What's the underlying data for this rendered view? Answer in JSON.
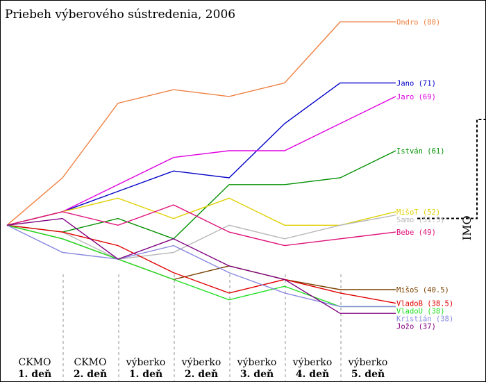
{
  "chart_data": {
    "type": "line",
    "title": "Priebeh výberového sústredenia, 2006",
    "xlabel": "",
    "ylabel": "",
    "stages": [
      {
        "line1": "CKMO",
        "line2": "1. deň"
      },
      {
        "line1": "CKMO",
        "line2": "2. deň"
      },
      {
        "line1": "výberko",
        "line2": "1. deň"
      },
      {
        "line1": "výberko",
        "line2": "2. deň"
      },
      {
        "line1": "výberko",
        "line2": "3. deň"
      },
      {
        "line1": "výberko",
        "line2": "4. deň"
      },
      {
        "line1": "výberko",
        "line2": "5. deň"
      }
    ],
    "x": [
      0,
      1,
      2,
      3,
      4,
      5,
      6,
      7
    ],
    "ylim": [
      32,
      82
    ],
    "imo_label": "IMO",
    "imo_cutoff": 51,
    "series": [
      {
        "name": "Ondro",
        "final": "80",
        "color": "#f08040",
        "values": [
          50,
          57,
          68,
          70,
          69,
          71,
          80,
          80
        ]
      },
      {
        "name": "Jano",
        "final": "71",
        "color": "#0000c8",
        "values": [
          50,
          52,
          55,
          58,
          57,
          65,
          71,
          71
        ]
      },
      {
        "name": "Jaro",
        "final": "69",
        "color": "#e000e0",
        "values": [
          50,
          52,
          56,
          60,
          61,
          61,
          65,
          69
        ]
      },
      {
        "name": "István",
        "final": "61",
        "color": "#009000",
        "values": [
          50,
          49,
          51,
          48,
          56,
          56,
          57,
          61
        ]
      },
      {
        "name": "MišoT",
        "final": "52",
        "color": "#e0d000",
        "values": [
          50,
          52,
          54,
          51,
          54,
          50,
          50,
          52
        ]
      },
      {
        "name": "Samo",
        "final": "51.5",
        "color": "#b8b8b8",
        "values": [
          50,
          49,
          45,
          46,
          50,
          48,
          50,
          51.5
        ]
      },
      {
        "name": "Bebe",
        "final": "49",
        "color": "#e0107a",
        "values": [
          50,
          52,
          50,
          53,
          49,
          47,
          48,
          49
        ]
      },
      {
        "name": "MišoS",
        "final": "40.5",
        "color": "#7a4000",
        "values": [
          50,
          48,
          45,
          42,
          44,
          42,
          40.5,
          40.5
        ]
      },
      {
        "name": "VladoB",
        "final": "38.5",
        "color": "#e00000",
        "values": [
          50,
          49,
          47,
          43,
          40,
          42,
          40,
          38.5
        ]
      },
      {
        "name": "VladoU",
        "final": "38",
        "color": "#20e020",
        "values": [
          50,
          48,
          45,
          42,
          39,
          41,
          38,
          38
        ]
      },
      {
        "name": "Kristián",
        "final": "38",
        "color": "#8888e0",
        "values": [
          50,
          46,
          45,
          47,
          43,
          40,
          38,
          38
        ]
      },
      {
        "name": "Jožo",
        "final": "37",
        "color": "#800080",
        "values": [
          50,
          51,
          45,
          48,
          44,
          42,
          37,
          37
        ]
      }
    ]
  }
}
